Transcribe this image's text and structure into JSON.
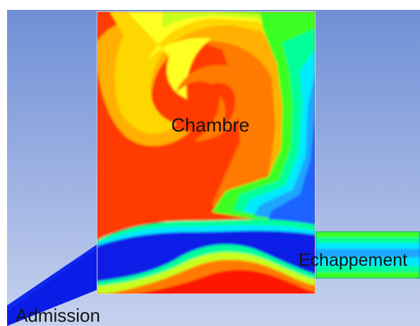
{
  "labels": {
    "chamber": "Chambre",
    "exhaust": "Echappement",
    "intake": "Admission"
  },
  "colors": {
    "background_top": "#6f8fd6",
    "background_bottom": "#c6d1ee",
    "flow_low": "#0a1ce6",
    "flow_high": "#ff1500"
  }
}
